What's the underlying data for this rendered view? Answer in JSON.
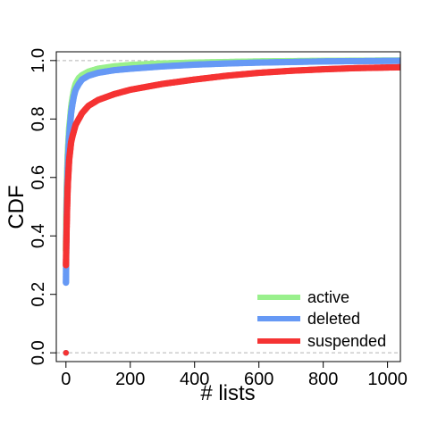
{
  "chart_data": {
    "type": "scatter",
    "title": "",
    "xlabel": "# lists",
    "ylabel": "CDF",
    "xlim": [
      -30,
      1040
    ],
    "ylim": [
      -0.03,
      1.03
    ],
    "x_ticks": [
      0,
      200,
      400,
      600,
      800,
      1000
    ],
    "x_tick_labels": [
      "0",
      "200",
      "400",
      "600",
      "800",
      "1000"
    ],
    "y_ticks": [
      0.0,
      0.2,
      0.4,
      0.6,
      0.8,
      1.0
    ],
    "y_tick_labels": [
      "0.0",
      "0.2",
      "0.4",
      "0.6",
      "0.8",
      "1.0"
    ],
    "reference_lines_y": [
      0.0,
      1.0
    ],
    "grid": false,
    "legend_position": "bottom-right",
    "series": [
      {
        "name": "active",
        "color": "#99f08c",
        "points": [
          [
            0,
            0.0
          ],
          [
            0,
            0.35
          ],
          [
            1,
            0.46
          ],
          [
            2,
            0.53
          ],
          [
            3,
            0.58
          ],
          [
            4,
            0.62
          ],
          [
            5,
            0.66
          ],
          [
            6,
            0.69
          ],
          [
            8,
            0.73
          ],
          [
            10,
            0.77
          ],
          [
            13,
            0.8
          ],
          [
            16,
            0.84
          ],
          [
            20,
            0.87
          ],
          [
            25,
            0.9
          ],
          [
            30,
            0.92
          ],
          [
            40,
            0.94
          ],
          [
            50,
            0.95
          ],
          [
            70,
            0.962
          ],
          [
            100,
            0.972
          ],
          [
            150,
            0.98
          ],
          [
            200,
            0.985
          ],
          [
            300,
            0.99
          ],
          [
            400,
            0.993
          ],
          [
            500,
            0.995
          ],
          [
            600,
            0.997
          ],
          [
            700,
            0.998
          ],
          [
            800,
            0.999
          ],
          [
            900,
            0.9995
          ],
          [
            1040,
            1.0
          ]
        ]
      },
      {
        "name": "deleted",
        "color": "#6699f5",
        "points": [
          [
            0,
            0.0
          ],
          [
            0,
            0.24
          ],
          [
            1,
            0.37
          ],
          [
            2,
            0.46
          ],
          [
            3,
            0.52
          ],
          [
            4,
            0.57
          ],
          [
            5,
            0.61
          ],
          [
            6,
            0.65
          ],
          [
            8,
            0.7
          ],
          [
            10,
            0.74
          ],
          [
            13,
            0.78
          ],
          [
            16,
            0.82
          ],
          [
            20,
            0.85
          ],
          [
            25,
            0.88
          ],
          [
            30,
            0.9
          ],
          [
            40,
            0.92
          ],
          [
            50,
            0.935
          ],
          [
            70,
            0.948
          ],
          [
            100,
            0.958
          ],
          [
            150,
            0.967
          ],
          [
            200,
            0.972
          ],
          [
            300,
            0.98
          ],
          [
            400,
            0.986
          ],
          [
            500,
            0.99
          ],
          [
            600,
            0.993
          ],
          [
            700,
            0.995
          ],
          [
            800,
            0.997
          ],
          [
            900,
            0.998
          ],
          [
            1040,
            0.999
          ]
        ]
      },
      {
        "name": "suspended",
        "color": "#f53333",
        "points": [
          [
            0,
            0.0
          ],
          [
            0,
            0.3
          ],
          [
            1,
            0.37
          ],
          [
            2,
            0.42
          ],
          [
            3,
            0.47
          ],
          [
            4,
            0.51
          ],
          [
            5,
            0.55
          ],
          [
            6,
            0.58
          ],
          [
            8,
            0.62
          ],
          [
            10,
            0.66
          ],
          [
            13,
            0.69
          ],
          [
            16,
            0.72
          ],
          [
            20,
            0.74
          ],
          [
            25,
            0.76
          ],
          [
            30,
            0.78
          ],
          [
            40,
            0.8
          ],
          [
            50,
            0.82
          ],
          [
            70,
            0.845
          ],
          [
            100,
            0.865
          ],
          [
            150,
            0.885
          ],
          [
            200,
            0.9
          ],
          [
            300,
            0.92
          ],
          [
            400,
            0.935
          ],
          [
            500,
            0.948
          ],
          [
            600,
            0.958
          ],
          [
            700,
            0.965
          ],
          [
            800,
            0.97
          ],
          [
            900,
            0.974
          ],
          [
            1040,
            0.977
          ]
        ]
      }
    ]
  }
}
